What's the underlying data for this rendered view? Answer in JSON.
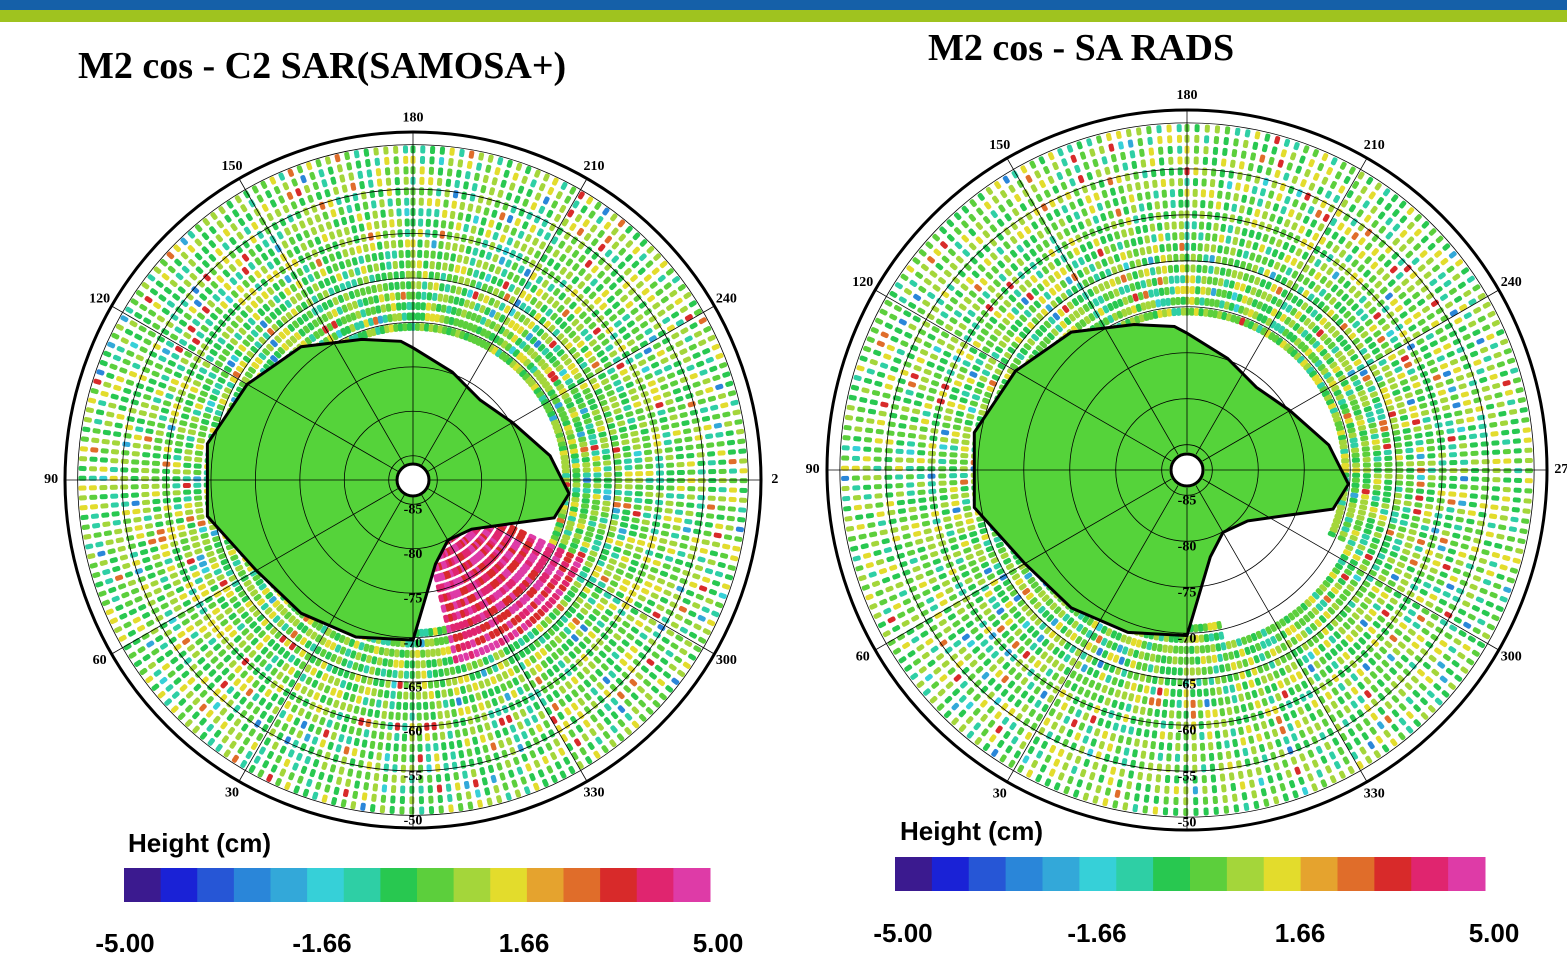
{
  "header": {
    "bands": [
      "#1560a8",
      "#9fc31f"
    ]
  },
  "panels": [
    {
      "title": "M2 cos - C2 SAR(SAMOSA+)",
      "longitude_labels": [
        "180",
        "210",
        "240",
        "2",
        "300",
        "330",
        "30",
        "60",
        "90",
        "120",
        "150"
      ],
      "latitude_labels": [
        "-85",
        "-80",
        "-75",
        "-70",
        "-65",
        "-60",
        "-55",
        "-50"
      ],
      "colorbar": {
        "label": "Height (cm)",
        "ticks": [
          "-5.00",
          "-1.66",
          "1.66",
          "5.00"
        ],
        "colors": [
          "#3b1a8f",
          "#1a22d6",
          "#2656d6",
          "#2a86d9",
          "#33a8d9",
          "#36d0d8",
          "#2ecfa5",
          "#28c850",
          "#5ccf3c",
          "#a4d63a",
          "#e3dc2c",
          "#e5a32e",
          "#e06d2a",
          "#d82a2a",
          "#e0256f",
          "#de3ba7"
        ]
      }
    },
    {
      "title": "M2 cos - SA RADS",
      "longitude_labels": [
        "180",
        "210",
        "240",
        "27",
        "300",
        "330",
        "30",
        "60",
        "90",
        "120",
        "150"
      ],
      "latitude_labels": [
        "-85",
        "-80",
        "-75",
        "-70",
        "-65",
        "-60",
        "-55",
        "-50"
      ],
      "colorbar": {
        "label": "Height (cm)",
        "ticks": [
          "-5.00",
          "-1.66",
          "1.66",
          "5.00"
        ],
        "colors": [
          "#3b1a8f",
          "#1a22d6",
          "#2656d6",
          "#2a86d9",
          "#33a8d9",
          "#36d0d8",
          "#2ecfa5",
          "#28c850",
          "#5ccf3c",
          "#a4d63a",
          "#e3dc2c",
          "#e5a32e",
          "#e06d2a",
          "#d82a2a",
          "#e0256f",
          "#de3ba7"
        ]
      }
    }
  ]
}
